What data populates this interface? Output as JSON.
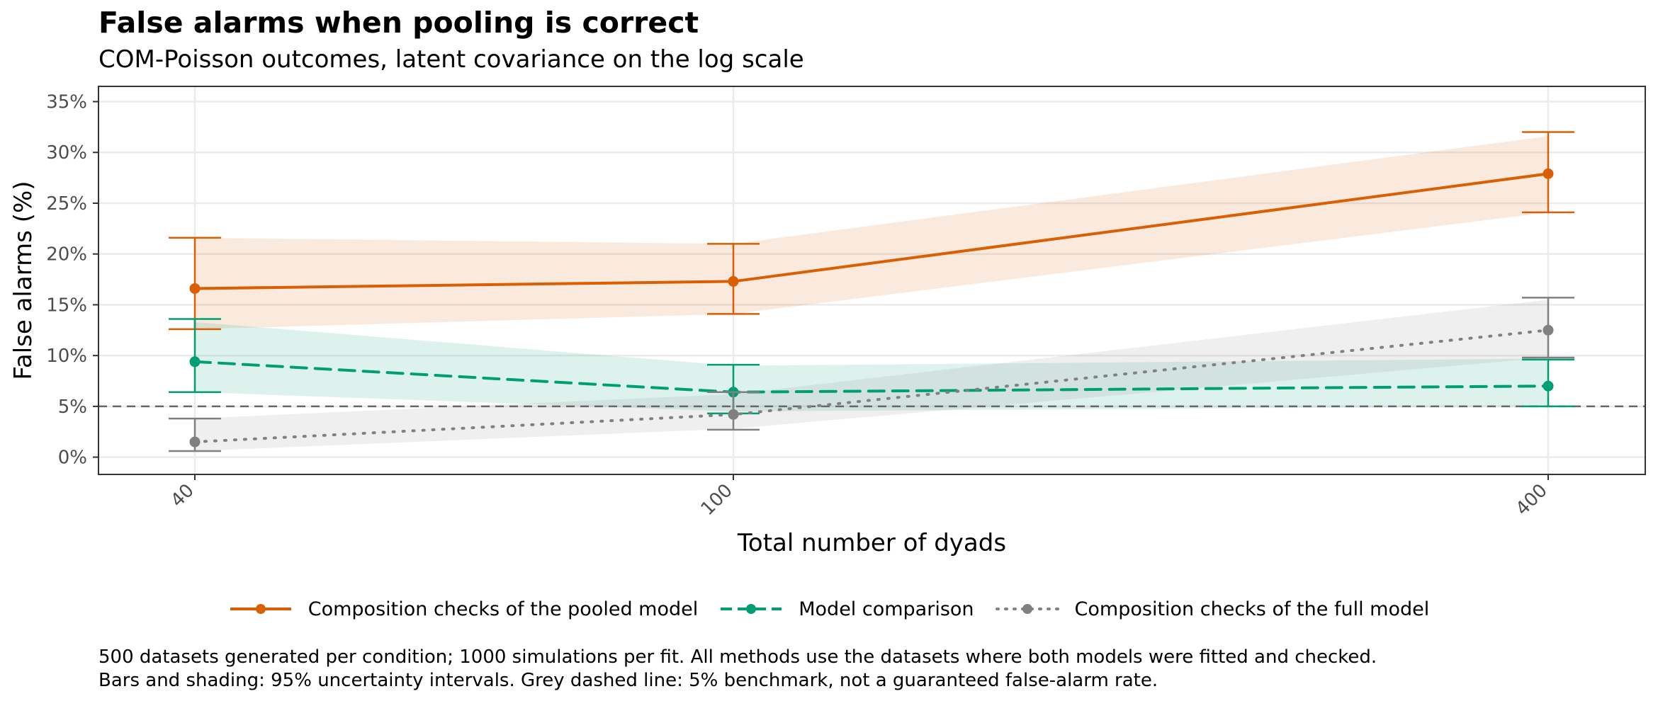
{
  "chart_data": {
    "type": "line",
    "title": "False alarms when pooling is correct",
    "subtitle": "COM-Poisson outcomes, latent covariance on the log scale",
    "xlabel": "Total number of dyads",
    "ylabel": "False alarms (%)",
    "x_tick_labels": [
      "40",
      "100",
      "400"
    ],
    "y_tick_labels": [
      "0%",
      "5%",
      "10%",
      "15%",
      "20%",
      "25%",
      "30%",
      "35%"
    ],
    "y_ticks": [
      0,
      5,
      10,
      15,
      20,
      25,
      30,
      35
    ],
    "ylim": [
      -1.7,
      36.5
    ],
    "reference_line": {
      "y": 5,
      "color": "#666666",
      "style": "dashed"
    },
    "grid": true,
    "legend_position": "bottom",
    "series": [
      {
        "name": "Composition checks of the pooled model",
        "color": "#D95F02",
        "line_style": "solid",
        "values": [
          16.6,
          17.3,
          27.9
        ],
        "lower": [
          12.6,
          14.1,
          24.1
        ],
        "upper": [
          21.6,
          21.0,
          32.0
        ],
        "band_lower": [
          12.6,
          14.1,
          24.1
        ],
        "band_upper": [
          21.6,
          21.0,
          31.6
        ]
      },
      {
        "name": "Model comparison",
        "color": "#009E73",
        "line_style": "dashed",
        "values": [
          9.4,
          6.4,
          7.0
        ],
        "lower": [
          6.4,
          4.3,
          5.0
        ],
        "upper": [
          13.6,
          9.1,
          9.6
        ],
        "band_lower": [
          6.4,
          4.5,
          5.0
        ],
        "band_upper": [
          13.3,
          9.0,
          9.7
        ]
      },
      {
        "name": "Composition checks of the full model",
        "color": "#808080",
        "line_style": "dotted",
        "values": [
          1.5,
          4.2,
          12.5
        ],
        "lower": [
          0.6,
          2.7,
          9.8
        ],
        "upper": [
          3.8,
          6.4,
          15.7
        ],
        "band_lower": [
          0.6,
          2.8,
          9.8
        ],
        "band_upper": [
          3.8,
          6.2,
          15.5
        ]
      }
    ]
  },
  "caption": {
    "line1": "500 datasets generated per condition; 1000 simulations per fit. All methods use the datasets where both models were fitted and checked.",
    "line2": "Bars and shading: 95% uncertainty intervals. Grey dashed line: 5% benchmark, not a guaranteed false-alarm rate."
  }
}
